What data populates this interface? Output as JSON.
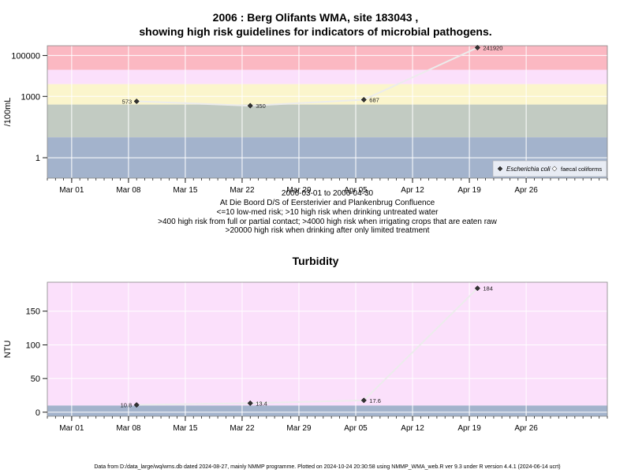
{
  "chart_data": [
    {
      "type": "line",
      "title_line1": "2006 : Berg Olifants WMA, site 183043 ,",
      "title_line2": "showing high risk guidelines for indicators of microbial pathogens.",
      "ylabel": "/100mL",
      "y_scale": "log10",
      "ylim": [
        0.1,
        300000
      ],
      "y_ticks": [
        1,
        1000,
        100000
      ],
      "y_tick_labels": [
        "1",
        "1000",
        "100000"
      ],
      "x_range": [
        "2006-02-26",
        "2006-05-06"
      ],
      "x_ticks": [
        "2006-03-01",
        "2006-03-08",
        "2006-03-15",
        "2006-03-22",
        "2006-03-29",
        "2006-04-05",
        "2006-04-12",
        "2006-04-19",
        "2006-04-26"
      ],
      "x_tick_labels": [
        "Mar 01",
        "Mar 08",
        "Mar 15",
        "Mar 22",
        "Mar 29",
        "Apr 05",
        "Apr 12",
        "Apr 19",
        "Apr 26"
      ],
      "grid": true,
      "bands": [
        {
          "from": 0.1,
          "to": 10,
          "color": "#a3b3cc"
        },
        {
          "from": 10,
          "to": 400,
          "color": "#c2cbc2"
        },
        {
          "from": 400,
          "to": 4000,
          "color": "#fbf5cc"
        },
        {
          "from": 4000,
          "to": 20000,
          "color": "#fbe0fb"
        },
        {
          "from": 20000,
          "to": 300000,
          "color": "#fbb8c2"
        }
      ],
      "series": [
        {
          "name": "Escherichia coli",
          "x": [
            "2006-03-09",
            "2006-03-23",
            "2006-04-06",
            "2006-04-20"
          ],
          "y": [
            573,
            350,
            687,
            241920
          ],
          "labels": [
            "573",
            "350",
            "687",
            "241920"
          ],
          "color": "#333333"
        }
      ],
      "legend": {
        "position": "bottom-right",
        "entries": [
          "Escherichia coli",
          "faecal coliforms"
        ]
      },
      "subtitle_lines": [
        "2006-03-01 to 2006-04-30",
        "At Die Boord D/S of Eersterivier and Plankenbrug Confluence",
        "<=10 low-med risk; >10 high risk when drinking untreated water",
        ">400 high risk from full or partial contact; >4000 high risk when irrigating crops that are eaten raw",
        ">20000 high risk when drinking after only limited treatment"
      ]
    },
    {
      "type": "line",
      "title": "Turbidity",
      "ylabel": "NTU",
      "ylim": [
        -6,
        193
      ],
      "y_ticks": [
        0,
        50,
        100,
        150
      ],
      "y_tick_labels": [
        "0",
        "50",
        "100",
        "150"
      ],
      "x_range": [
        "2006-02-26",
        "2006-05-06"
      ],
      "x_ticks": [
        "2006-03-01",
        "2006-03-08",
        "2006-03-15",
        "2006-03-22",
        "2006-03-29",
        "2006-04-05",
        "2006-04-12",
        "2006-04-19",
        "2006-04-26"
      ],
      "x_tick_labels": [
        "Mar 01",
        "Mar 08",
        "Mar 15",
        "Mar 22",
        "Mar 29",
        "Apr 05",
        "Apr 12",
        "Apr 19",
        "Apr 26"
      ],
      "grid": true,
      "bands": [
        {
          "from": -6,
          "to": 10,
          "color": "#a3b3cc"
        },
        {
          "from": 10,
          "to": 193,
          "color": "#fbe0fb"
        }
      ],
      "series": [
        {
          "name": "",
          "x": [
            "2006-03-09",
            "2006-03-23",
            "2006-04-06",
            "2006-04-20"
          ],
          "y": [
            10.8,
            13.4,
            17.6,
            184
          ],
          "labels": [
            "10.8",
            "13.4",
            "17.6",
            "184"
          ],
          "color": "#333333"
        }
      ]
    }
  ],
  "footer": "Data from D:/data_large/wq/wms.db dated 2024-08-27, mainly NMMP programme. Plotted on 2024-10-24 20:30:58 using NMMP_WMA_web.R ver 9.3 under R version 4.4.1 (2024-06-14 ucrt)"
}
